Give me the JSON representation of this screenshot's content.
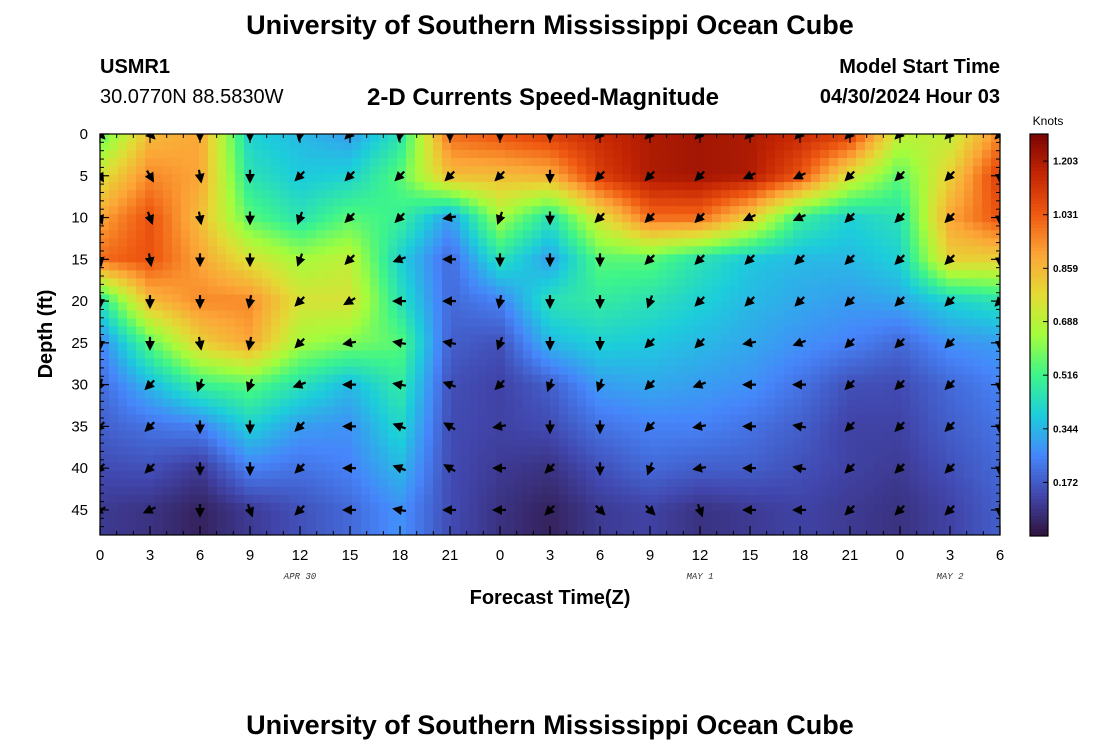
{
  "header": {
    "title": "University of Southern Mississippi Ocean Cube",
    "station_id": "USMR1",
    "station_coords": "30.0770N  88.5830W",
    "plot_title": "2-D Currents Speed-Magnitude",
    "model_start_label": "Model Start Time",
    "model_start_value": "04/30/2024 Hour 03"
  },
  "footer": {
    "title": "University of Southern Mississippi Ocean Cube"
  },
  "colors": {
    "palette": [
      "#30123b",
      "#4146ac",
      "#4686fb",
      "#1ccddb",
      "#3ef58a",
      "#a3fd3c",
      "#e3db35",
      "#fca537",
      "#ef5911",
      "#c42503",
      "#7a0403"
    ]
  },
  "chart_data": {
    "type": "heatmap",
    "xlabel": "Forecast Time(Z)",
    "ylabel": "Depth (ft)",
    "x": [
      0,
      3,
      6,
      9,
      12,
      15,
      18,
      21,
      24,
      27,
      30,
      33,
      36,
      39,
      42,
      45,
      48,
      51,
      54
    ],
    "x_tick_labels": [
      "0",
      "3",
      "6",
      "9",
      "12",
      "15",
      "18",
      "21",
      "0",
      "3",
      "6",
      "9",
      "12",
      "15",
      "18",
      "21",
      "0",
      "3",
      "6"
    ],
    "date_labels": [
      {
        "label": "APR 30",
        "x": 12
      },
      {
        "label": "MAY 1",
        "x": 36
      },
      {
        "label": "MAY 2",
        "x": 51
      }
    ],
    "depth_ticks": [
      0,
      5,
      10,
      15,
      20,
      25,
      30,
      35,
      40,
      45
    ],
    "xlim": [
      0,
      54
    ],
    "ylim": [
      48,
      0
    ],
    "arrow_depths": [
      0,
      5,
      10,
      15,
      20,
      25,
      30,
      35,
      40,
      45
    ],
    "speed": [
      [
        0.55,
        0.85,
        0.9,
        0.4,
        0.35,
        0.3,
        0.45,
        1.0,
        1.05,
        1.1,
        1.15,
        1.2,
        1.22,
        1.2,
        1.15,
        1.1,
        0.7,
        0.7,
        0.95
      ],
      [
        0.75,
        0.95,
        0.9,
        0.45,
        0.38,
        0.4,
        0.55,
        0.85,
        0.85,
        0.88,
        1.1,
        1.2,
        1.22,
        1.2,
        1.05,
        0.75,
        0.55,
        0.8,
        1.1
      ],
      [
        0.9,
        1.05,
        0.85,
        0.55,
        0.45,
        0.55,
        0.5,
        0.3,
        0.65,
        0.45,
        0.75,
        1.0,
        1.0,
        0.8,
        0.5,
        0.4,
        0.45,
        0.9,
        1.05
      ],
      [
        1.0,
        1.05,
        0.9,
        0.75,
        0.65,
        0.7,
        0.4,
        0.2,
        0.45,
        0.3,
        0.55,
        0.55,
        0.45,
        0.38,
        0.35,
        0.35,
        0.4,
        0.8,
        0.8
      ],
      [
        0.45,
        0.85,
        0.95,
        0.95,
        0.75,
        0.75,
        0.45,
        0.2,
        0.25,
        0.45,
        0.48,
        0.45,
        0.4,
        0.35,
        0.32,
        0.3,
        0.32,
        0.4,
        0.45
      ],
      [
        0.25,
        0.55,
        0.8,
        0.9,
        0.65,
        0.6,
        0.55,
        0.18,
        0.15,
        0.35,
        0.4,
        0.38,
        0.35,
        0.32,
        0.28,
        0.25,
        0.2,
        0.28,
        0.3
      ],
      [
        0.2,
        0.35,
        0.5,
        0.55,
        0.45,
        0.35,
        0.48,
        0.15,
        0.12,
        0.18,
        0.3,
        0.32,
        0.3,
        0.28,
        0.22,
        0.15,
        0.14,
        0.2,
        0.25
      ],
      [
        0.18,
        0.22,
        0.25,
        0.4,
        0.3,
        0.28,
        0.42,
        0.14,
        0.12,
        0.14,
        0.22,
        0.25,
        0.25,
        0.22,
        0.18,
        0.12,
        0.12,
        0.18,
        0.22
      ],
      [
        0.14,
        0.15,
        0.1,
        0.25,
        0.22,
        0.25,
        0.35,
        0.14,
        0.1,
        0.08,
        0.15,
        0.2,
        0.18,
        0.18,
        0.15,
        0.12,
        0.1,
        0.15,
        0.2
      ],
      [
        0.1,
        0.08,
        0.04,
        0.1,
        0.15,
        0.2,
        0.28,
        0.14,
        0.08,
        0.04,
        0.1,
        0.12,
        0.08,
        0.1,
        0.12,
        0.1,
        0.08,
        0.12,
        0.18
      ]
    ],
    "direction_deg": [
      [
        135,
        135,
        180,
        180,
        190,
        225,
        190,
        180,
        180,
        180,
        225,
        225,
        225,
        225,
        225,
        225,
        225,
        225,
        225
      ],
      [
        150,
        150,
        170,
        180,
        225,
        225,
        225,
        225,
        225,
        180,
        225,
        225,
        225,
        245,
        245,
        225,
        225,
        225,
        180
      ],
      [
        160,
        160,
        170,
        180,
        200,
        225,
        225,
        260,
        200,
        180,
        225,
        225,
        225,
        245,
        245,
        225,
        225,
        225,
        180
      ],
      [
        170,
        170,
        180,
        180,
        200,
        225,
        250,
        270,
        180,
        180,
        180,
        225,
        225,
        225,
        225,
        225,
        225,
        225,
        180
      ],
      [
        180,
        180,
        180,
        190,
        225,
        240,
        270,
        270,
        190,
        180,
        180,
        200,
        225,
        225,
        225,
        225,
        225,
        225,
        225
      ],
      [
        180,
        180,
        170,
        190,
        225,
        260,
        280,
        280,
        200,
        180,
        180,
        225,
        225,
        260,
        250,
        225,
        225,
        225,
        180
      ],
      [
        200,
        225,
        200,
        200,
        250,
        270,
        280,
        290,
        225,
        200,
        200,
        225,
        250,
        270,
        270,
        225,
        225,
        225,
        180
      ],
      [
        225,
        225,
        180,
        180,
        225,
        270,
        290,
        300,
        260,
        180,
        180,
        225,
        260,
        270,
        280,
        225,
        225,
        225,
        180
      ],
      [
        225,
        225,
        180,
        180,
        225,
        270,
        290,
        300,
        270,
        225,
        180,
        200,
        260,
        270,
        280,
        225,
        225,
        225,
        180
      ],
      [
        245,
        245,
        180,
        160,
        225,
        270,
        280,
        270,
        270,
        225,
        135,
        135,
        160,
        270,
        270,
        225,
        225,
        225,
        180
      ]
    ],
    "colorbar": {
      "title": "Knots",
      "min": 0.0,
      "max": 1.29,
      "tick_values": [
        0.172,
        0.344,
        0.516,
        0.688,
        0.859,
        1.031,
        1.203
      ],
      "tick_labels": [
        "0.172",
        "0.344",
        "0.516",
        "0.688",
        "0.859",
        "1.031",
        "1.203"
      ]
    }
  }
}
